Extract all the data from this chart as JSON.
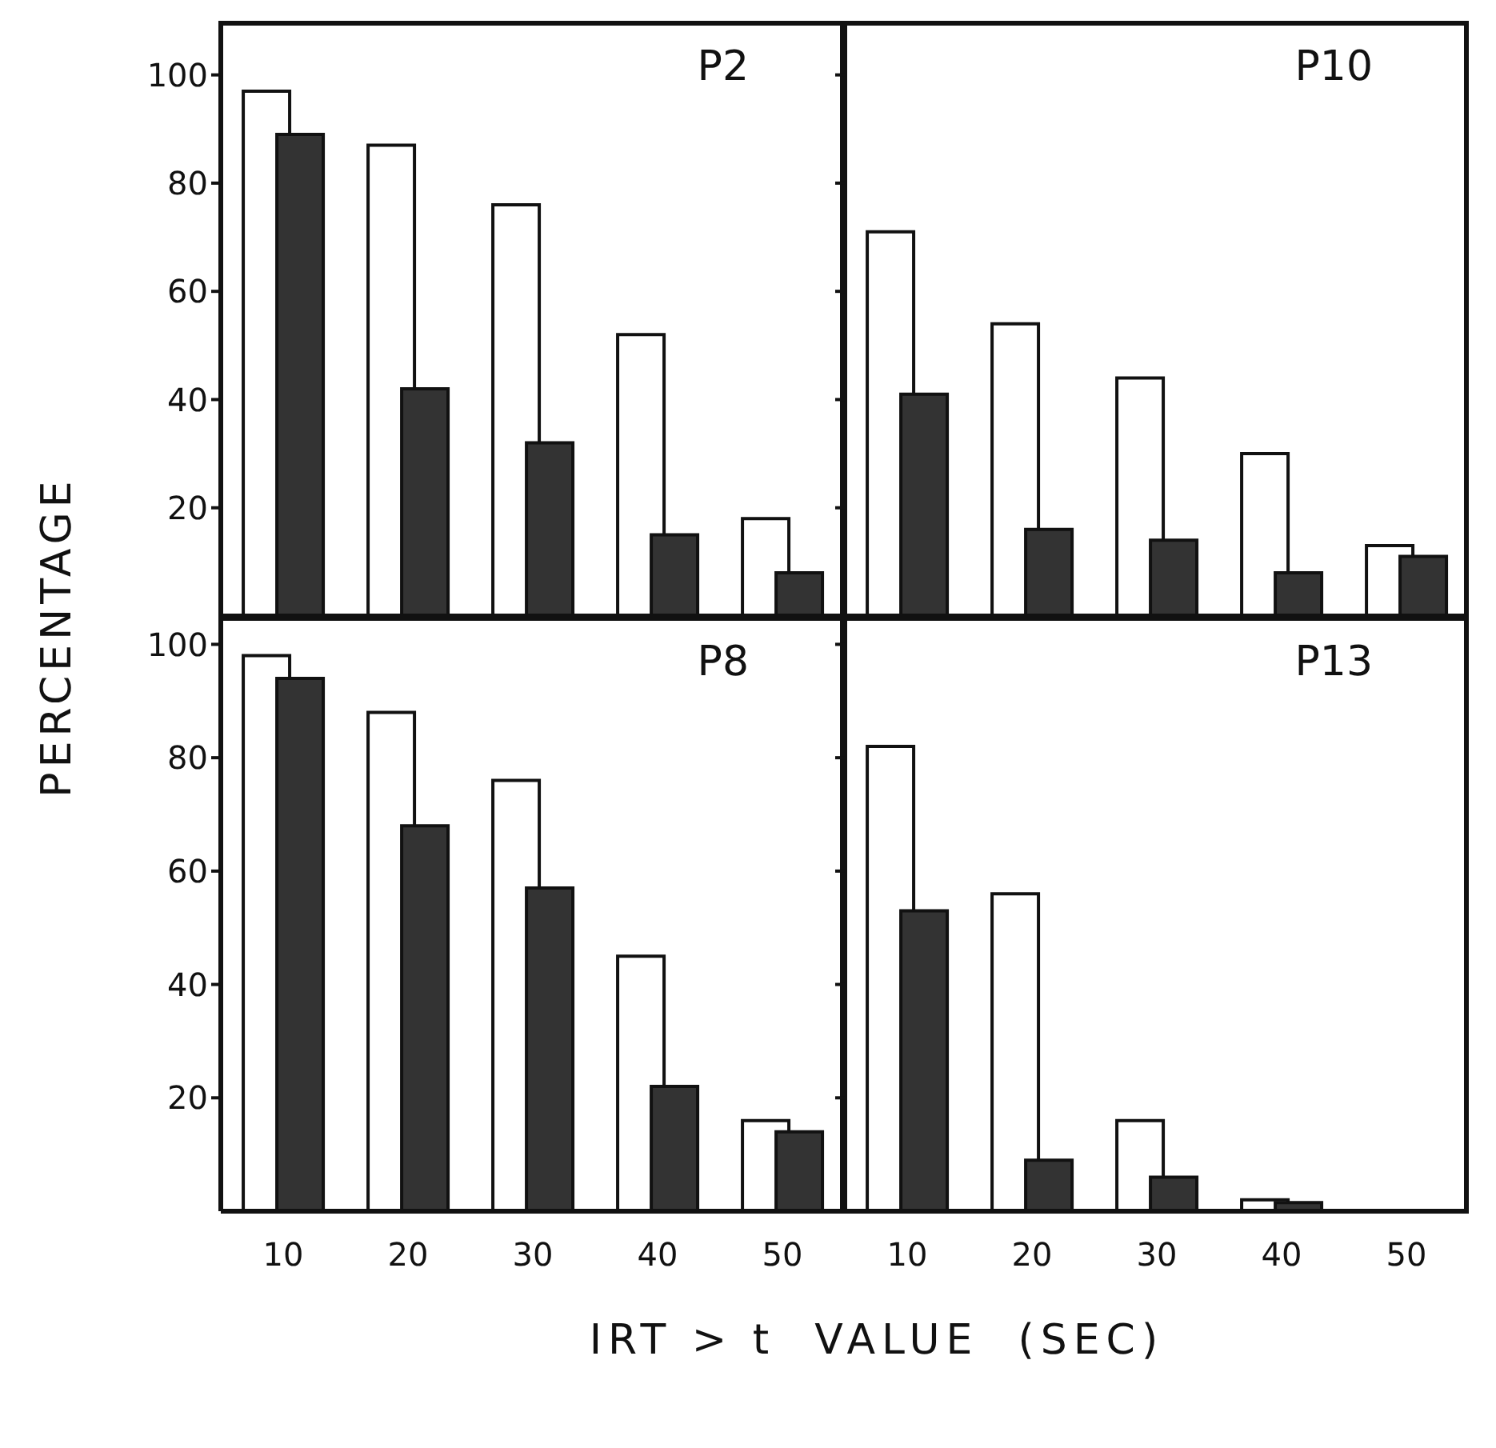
{
  "chart_data": [
    {
      "type": "bar",
      "title": "P2",
      "ylabel": "PERCENTAGE",
      "categories": [
        "10",
        "20",
        "30",
        "40",
        "50"
      ],
      "series": [
        {
          "color": "#ffffff",
          "values": [
            97,
            87,
            76,
            52,
            18
          ]
        },
        {
          "color": "#333333",
          "values": [
            89,
            42,
            32,
            15,
            8
          ]
        }
      ],
      "ylim": [
        0,
        110
      ],
      "yticks": [
        20,
        40,
        60,
        80,
        100
      ],
      "grid": false,
      "legend": false,
      "tick_labels": "y"
    },
    {
      "type": "bar",
      "title": "P10",
      "categories": [
        "10",
        "20",
        "30",
        "40",
        "50"
      ],
      "series": [
        {
          "color": "#ffffff",
          "values": [
            71,
            54,
            44,
            30,
            13
          ]
        },
        {
          "color": "#333333",
          "values": [
            41,
            16,
            14,
            8,
            11
          ]
        }
      ],
      "ylim": [
        0,
        110
      ],
      "yticks": [
        20,
        40,
        60,
        80,
        100
      ],
      "grid": false,
      "legend": false,
      "tick_labels": false
    },
    {
      "type": "bar",
      "title": "P8",
      "xlabel": "IRT > t  VALUE  (SEC)",
      "categories": [
        "10",
        "20",
        "30",
        "40",
        "50"
      ],
      "series": [
        {
          "color": "#ffffff",
          "values": [
            98,
            88,
            76,
            45,
            16
          ]
        },
        {
          "color": "#333333",
          "values": [
            94,
            68,
            57,
            22,
            14
          ]
        }
      ],
      "ylim": [
        0,
        105
      ],
      "yticks": [
        20,
        40,
        60,
        80,
        100
      ],
      "grid": false,
      "legend": false
    },
    {
      "type": "bar",
      "title": "P13",
      "categories": [
        "10",
        "20",
        "30",
        "40",
        "50"
      ],
      "series": [
        {
          "color": "#ffffff",
          "values": [
            82,
            56,
            16,
            2,
            null
          ]
        },
        {
          "color": "#333333",
          "values": [
            53,
            9,
            6,
            1.5,
            null
          ]
        }
      ],
      "ylim": [
        0,
        105
      ],
      "yticks": [
        20,
        40,
        60,
        80,
        100
      ],
      "grid": false,
      "legend": false,
      "tick_labels": "x"
    }
  ]
}
